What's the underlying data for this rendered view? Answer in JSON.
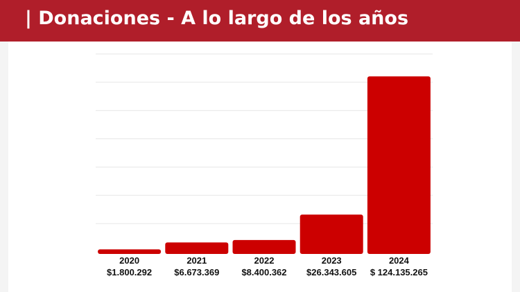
{
  "header": {
    "title": "| Donaciones - A lo largo de los años"
  },
  "colors": {
    "header_bg": "#b01e2a",
    "bar": "#cc0000",
    "grid": "#e6e6e6"
  },
  "chart_data": {
    "type": "bar",
    "title": "| Donaciones - A lo largo de los años",
    "categories": [
      "2020",
      "2021",
      "2022",
      "2023",
      "2024"
    ],
    "value_labels": [
      "$1.800.292",
      "$6.673.369",
      "$8.400.362",
      "$26.343.605",
      "$ 124.135.265"
    ],
    "values": [
      1800292,
      6673369,
      8400362,
      26343605,
      124135265
    ],
    "xlabel": "",
    "ylabel": "",
    "ylim": [
      0,
      140000000
    ],
    "grid": true,
    "grid_step": 20000000
  }
}
